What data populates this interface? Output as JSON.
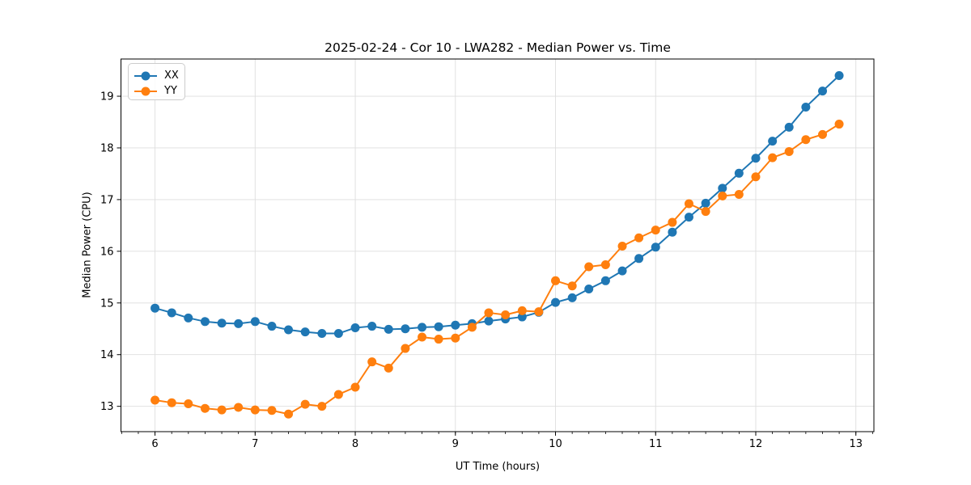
{
  "figure": {
    "title": "2025-02-24 - Cor 10 - LWA282 - Median Power vs. Time",
    "xlabel": "UT Time (hours)",
    "ylabel": "Median Power (CPU)"
  },
  "chart_data": {
    "type": "line",
    "title": "2025-02-24 - Cor 10 - LWA282 - Median Power vs. Time",
    "xlabel": "UT Time (hours)",
    "ylabel": "Median Power (CPU)",
    "xlim": [
      5.66,
      13.18
    ],
    "ylim": [
      12.51,
      19.72
    ],
    "x_ticks": [
      6,
      7,
      8,
      9,
      10,
      11,
      12,
      13
    ],
    "y_ticks": [
      13,
      14,
      15,
      16,
      17,
      18,
      19
    ],
    "x_minor_tick_step": 0.166667,
    "grid": true,
    "grid_color": "#dedede",
    "background": "#ffffff",
    "legend": {
      "position": "upper-left",
      "entries": [
        "XX",
        "YY"
      ]
    },
    "x": [
      6.0,
      6.167,
      6.333,
      6.5,
      6.667,
      6.833,
      7.0,
      7.167,
      7.333,
      7.5,
      7.667,
      7.833,
      8.0,
      8.167,
      8.333,
      8.5,
      8.667,
      8.833,
      9.0,
      9.167,
      9.333,
      9.5,
      9.667,
      9.833,
      10.0,
      10.167,
      10.333,
      10.5,
      10.667,
      10.833,
      11.0,
      11.167,
      11.333,
      11.5,
      11.667,
      11.833,
      12.0,
      12.167,
      12.333,
      12.5,
      12.667,
      12.833
    ],
    "series": [
      {
        "name": "XX",
        "color": "#1f77b4",
        "marker": "circle",
        "values": [
          14.9,
          14.81,
          14.71,
          14.64,
          14.61,
          14.6,
          14.64,
          14.55,
          14.48,
          14.44,
          14.41,
          14.41,
          14.52,
          14.55,
          14.49,
          14.5,
          14.53,
          14.54,
          14.57,
          14.6,
          14.65,
          14.69,
          14.73,
          14.82,
          15.01,
          15.1,
          15.27,
          15.43,
          15.62,
          15.86,
          16.08,
          16.37,
          16.66,
          16.93,
          17.22,
          17.51,
          17.8,
          18.13,
          18.4,
          18.79,
          19.1,
          19.4
        ]
      },
      {
        "name": "YY",
        "color": "#ff7f0e",
        "marker": "circle",
        "values": [
          13.12,
          13.07,
          13.05,
          12.96,
          12.93,
          12.98,
          12.93,
          12.92,
          12.85,
          13.04,
          13.0,
          13.23,
          13.37,
          13.86,
          13.74,
          14.12,
          14.34,
          14.3,
          14.32,
          14.53,
          14.81,
          14.77,
          14.85,
          14.83,
          15.43,
          15.33,
          15.7,
          15.74,
          16.1,
          16.26,
          16.41,
          16.56,
          16.92,
          16.77,
          17.07,
          17.1,
          17.44,
          17.81,
          17.93,
          18.16,
          18.26,
          18.46
        ]
      }
    ]
  }
}
